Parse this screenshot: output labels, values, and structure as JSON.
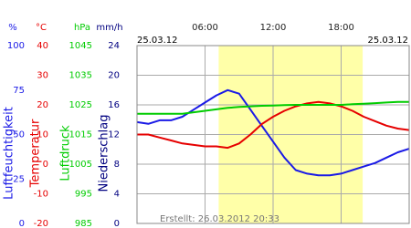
{
  "chart_data": {
    "type": "line",
    "x": [
      0,
      1,
      2,
      3,
      4,
      5,
      6,
      7,
      8,
      9,
      10,
      11,
      12,
      13,
      14,
      15,
      16,
      17,
      18,
      19,
      20,
      21,
      22,
      23,
      24
    ],
    "xlim": [
      0,
      24
    ],
    "xticks": [
      {
        "value": 6,
        "label": "06:00"
      },
      {
        "value": 12,
        "label": "12:00"
      },
      {
        "value": 18,
        "label": "18:00"
      }
    ],
    "date_start": "25.03.12",
    "date_end": "25.03.12",
    "created": "Erstellt: 26.03.2012 20:33",
    "daylight": [
      7.2,
      19.9
    ],
    "grid": true,
    "axes": [
      {
        "unit": "%",
        "name": "Luftfeuchtigkeit",
        "color": "#1a1ae6",
        "ylim": [
          0,
          100
        ],
        "yticks": [
          0,
          25,
          50,
          75,
          100
        ],
        "values": [
          57,
          56,
          58,
          58,
          60,
          64,
          68,
          72,
          75,
          73,
          64,
          55,
          46,
          37,
          30,
          28,
          27,
          27,
          28,
          30,
          32,
          34,
          37,
          40,
          42
        ]
      },
      {
        "unit": "°C",
        "name": "Temperatur",
        "color": "#e60000",
        "ylim": [
          -20,
          40
        ],
        "yticks": [
          -20,
          -10,
          0,
          10,
          20,
          30,
          40
        ],
        "values": [
          10,
          10,
          9,
          8,
          7,
          6.5,
          6,
          6,
          5.5,
          7,
          10,
          13.5,
          16,
          18,
          19.5,
          20.5,
          21,
          20.5,
          19.5,
          18,
          16,
          14.5,
          13,
          12,
          11.5
        ]
      },
      {
        "unit": "hPa",
        "name": "Luftdruck",
        "color": "#00cc00",
        "ylim": [
          985,
          1045
        ],
        "yticks": [
          985,
          995,
          1005,
          1015,
          1025,
          1035,
          1045
        ],
        "values": [
          1022,
          1022,
          1022,
          1022,
          1022,
          1022.5,
          1023,
          1023.5,
          1024,
          1024.3,
          1024.5,
          1024.7,
          1024.8,
          1024.9,
          1025,
          1025,
          1025,
          1025,
          1025,
          1025.2,
          1025.4,
          1025.6,
          1025.8,
          1026,
          1026
        ]
      },
      {
        "unit": "mm/h",
        "name": "Niederschlag",
        "color": "#000080",
        "ylim": [
          0,
          24
        ],
        "yticks": [
          0,
          4,
          8,
          12,
          16,
          20,
          24
        ]
      }
    ]
  }
}
